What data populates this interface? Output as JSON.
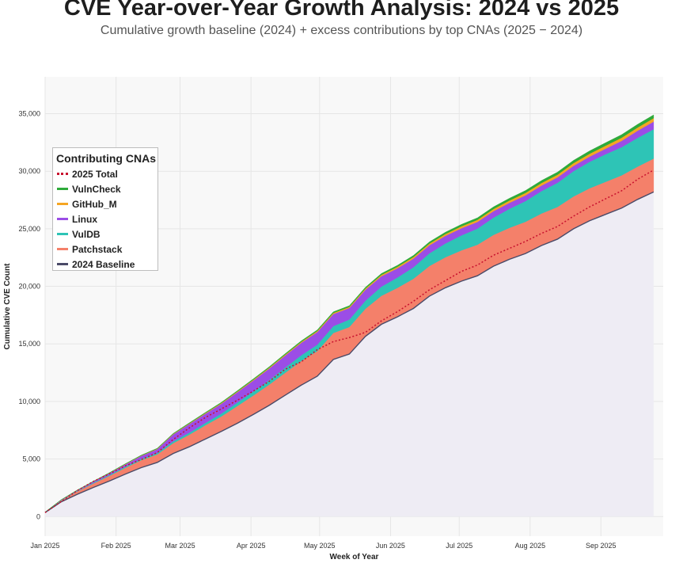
{
  "chart_data": {
    "type": "area",
    "title": "CVE Year-over-Year Growth Analysis: 2024 vs 2025",
    "subtitle": "Cumulative growth baseline (2024) + excess contributions by top CNAs (2025 − 2024)",
    "xlabel": "Week of Year",
    "ylabel": "Cumulative CVE Count",
    "ylim": [
      -1700,
      38200
    ],
    "xlim": [
      0.0,
      38.6
    ],
    "yticks": [
      0,
      5000,
      10000,
      15000,
      20000,
      25000,
      30000,
      35000
    ],
    "ytick_labels": [
      "0",
      "5,000",
      "10,000",
      "15,000",
      "20,000",
      "25,000",
      "30,000",
      "35,000"
    ],
    "xticks": [
      {
        "x": 0.0,
        "label": "Jan 2025"
      },
      {
        "x": 4.43,
        "label": "Feb 2025"
      },
      {
        "x": 8.43,
        "label": "Mar 2025"
      },
      {
        "x": 12.86,
        "label": "Apr 2025"
      },
      {
        "x": 17.14,
        "label": "May 2025"
      },
      {
        "x": 21.57,
        "label": "Jun 2025"
      },
      {
        "x": 25.86,
        "label": "Jul 2025"
      },
      {
        "x": 30.29,
        "label": "Aug 2025"
      },
      {
        "x": 34.71,
        "label": "Sep 2025"
      }
    ],
    "grid": true,
    "legend_title": "Contributing CNAs",
    "legend_position": "upper-left",
    "weeks": [
      0,
      1,
      2,
      3,
      4,
      5,
      6,
      7,
      8,
      9,
      10,
      11,
      12,
      13,
      14,
      15,
      16,
      17,
      18,
      19,
      20,
      21,
      22,
      23,
      24,
      25,
      26,
      27,
      28,
      29,
      30,
      31,
      32,
      33,
      34,
      35,
      36,
      37,
      38
    ],
    "baseline": {
      "name": "2024 Baseline",
      "color": "#4a4a68",
      "fill": "#eeecf4",
      "values": [
        350,
        1280,
        1930,
        2520,
        3080,
        3680,
        4250,
        4700,
        5480,
        6060,
        6730,
        7400,
        8100,
        8870,
        9670,
        10550,
        11420,
        12200,
        13650,
        14120,
        15650,
        16700,
        17350,
        18080,
        19150,
        19880,
        20450,
        20920,
        21750,
        22350,
        22850,
        23550,
        24100,
        25000,
        25700,
        26250,
        26800,
        27550,
        28200
      ]
    },
    "series": [
      {
        "name": "Patchstack",
        "color": "#f4806a",
        "values": [
          30,
          120,
          250,
          350,
          450,
          550,
          650,
          700,
          900,
          1050,
          1200,
          1300,
          1500,
          1650,
          1800,
          1950,
          2100,
          2180,
          2300,
          2350,
          2400,
          2480,
          2520,
          2580,
          2620,
          2650,
          2680,
          2700,
          2720,
          2740,
          2760,
          2780,
          2800,
          2810,
          2820,
          2830,
          2840,
          2850,
          2900
        ]
      },
      {
        "name": "VulDB",
        "color": "#2ec4b6",
        "values": [
          5,
          20,
          40,
          60,
          80,
          100,
          120,
          140,
          160,
          180,
          200,
          250,
          300,
          350,
          400,
          450,
          500,
          560,
          600,
          650,
          700,
          800,
          900,
          1000,
          1100,
          1200,
          1300,
          1400,
          1500,
          1650,
          1800,
          1950,
          2100,
          2200,
          2300,
          2400,
          2450,
          2500,
          2550
        ]
      },
      {
        "name": "Linux",
        "color": "#9b4de6",
        "values": [
          5,
          30,
          60,
          100,
          150,
          200,
          250,
          320,
          600,
          750,
          800,
          850,
          900,
          950,
          1000,
          1050,
          1080,
          1100,
          1050,
          1000,
          950,
          900,
          800,
          750,
          700,
          660,
          620,
          580,
          560,
          520,
          500,
          480,
          470,
          460,
          450,
          480,
          550,
          620,
          660
        ]
      },
      {
        "name": "GitHub_M",
        "color": "#f5a623",
        "values": [
          0,
          5,
          10,
          15,
          20,
          25,
          30,
          35,
          40,
          50,
          55,
          60,
          65,
          70,
          75,
          80,
          85,
          90,
          95,
          100,
          110,
          120,
          130,
          140,
          150,
          160,
          170,
          180,
          190,
          200,
          210,
          220,
          230,
          240,
          250,
          260,
          270,
          280,
          300
        ]
      },
      {
        "name": "VulnCheck",
        "color": "#2eaa3a",
        "values": [
          0,
          5,
          10,
          15,
          20,
          25,
          30,
          35,
          40,
          45,
          50,
          55,
          60,
          65,
          70,
          75,
          80,
          85,
          90,
          95,
          100,
          110,
          120,
          130,
          140,
          150,
          160,
          170,
          180,
          190,
          200,
          210,
          220,
          230,
          240,
          250,
          260,
          270,
          280
        ]
      }
    ],
    "total_2025": {
      "name": "2025 Total",
      "color": "#c8102e",
      "values": [
        350,
        1300,
        2250,
        3050,
        3700,
        4400,
        4950,
        5550,
        6700,
        7700,
        8600,
        9350,
        10100,
        10900,
        11750,
        12800,
        13450,
        14500,
        15200,
        15550,
        16000,
        17000,
        17800,
        18700,
        19700,
        20500,
        21300,
        21850,
        22700,
        23300,
        23900,
        24600,
        25200,
        26100,
        26900,
        27600,
        28300,
        29300,
        30100
      ]
    },
    "legend_order": [
      "2025 Total",
      "VulnCheck",
      "GitHub_M",
      "Linux",
      "VulDB",
      "Patchstack",
      "2024 Baseline"
    ]
  },
  "colors": {
    "plot_background": "#f8f8f8",
    "grid": "#e6e6e6",
    "total_line": "#c8102e"
  }
}
